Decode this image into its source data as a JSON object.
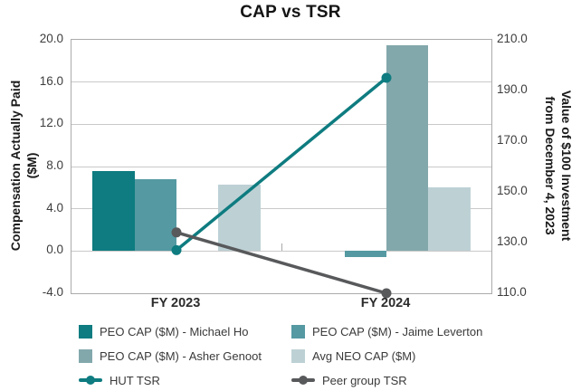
{
  "title": "CAP vs TSR",
  "axes": {
    "left": {
      "title": [
        "Compensation Actually Paid",
        "($M)"
      ],
      "ticks": [
        "20.0",
        "16.0",
        "12.0",
        "8.0",
        "4.0",
        "0.0",
        "-4.0"
      ]
    },
    "right": {
      "title": [
        "Value of $100 Investment",
        "from December 4, 2023"
      ],
      "ticks": [
        "210.0",
        "190.0",
        "170.0",
        "150.0",
        "130.0",
        "110.0"
      ]
    },
    "x": {
      "labels": [
        "FY 2023",
        "FY 2024"
      ]
    }
  },
  "chart_data": {
    "type": "combo: grouped bars on left axis + lines on right axis",
    "title": "CAP vs TSR",
    "categories": [
      "FY 2023",
      "FY 2024"
    ],
    "left_ylabel": "Compensation Actually Paid ($M)",
    "right_ylabel": "Value of $100 Investment from December 4, 2023",
    "left_ylim": [
      -4,
      20
    ],
    "right_ylim": [
      110,
      210
    ],
    "grid": "horizontal gridlines every 4 units of left axis",
    "legend_position": "bottom, two columns",
    "bar_series": [
      {
        "name": "PEO CAP ($M) - Michael Ho",
        "color": "#0e7c80",
        "values": [
          7.6,
          null
        ]
      },
      {
        "name": "PEO CAP ($M) - Jaime Leverton",
        "color": "#5599a2",
        "values": [
          6.8,
          -0.6
        ]
      },
      {
        "name": "PEO CAP ($M) - Asher Genoot",
        "color": "#83a8ac",
        "values": [
          null,
          19.5
        ]
      },
      {
        "name": "Avg NEO CAP ($M)",
        "color": "#bdd1d5",
        "values": [
          6.3,
          6.0
        ]
      }
    ],
    "line_series": [
      {
        "name": "HUT TSR",
        "color": "#0e7c80",
        "values": [
          127,
          195
        ]
      },
      {
        "name": "Peer group TSR",
        "color": "#58595b",
        "values": [
          134,
          110
        ]
      }
    ]
  },
  "legend": {
    "items": [
      {
        "label": "PEO CAP ($M) - Michael Ho",
        "marker": "square",
        "color": "#0e7c80"
      },
      {
        "label": "PEO CAP ($M) - Jaime Leverton",
        "marker": "square",
        "color": "#5599a2"
      },
      {
        "label": "PEO CAP ($M) - Asher Genoot",
        "marker": "square",
        "color": "#83a8ac"
      },
      {
        "label": "Avg NEO CAP ($M)",
        "marker": "square",
        "color": "#bdd1d5"
      },
      {
        "label": "HUT TSR",
        "marker": "line-dot",
        "color": "#0e7c80"
      },
      {
        "label": "Peer group TSR",
        "marker": "line-dot",
        "color": "#58595b"
      }
    ]
  },
  "colors": {
    "gridline": "#c9c9c9",
    "plot_border": "#ababab",
    "tick_text": "#3d3d3d",
    "title_text": "#141414"
  }
}
